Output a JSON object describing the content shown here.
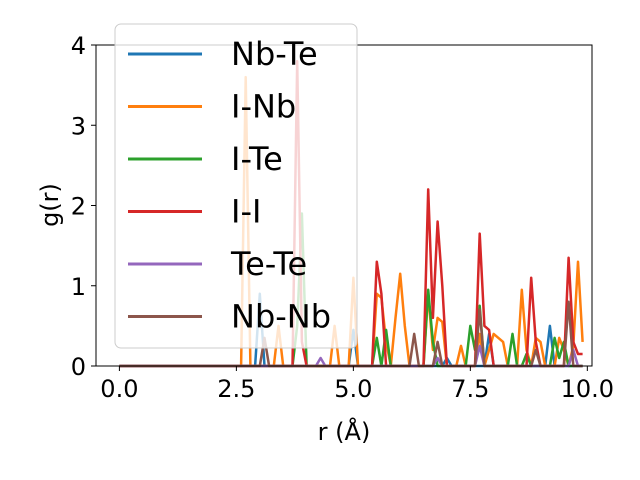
{
  "chart_data": {
    "type": "line",
    "xlabel": "r (Å)",
    "ylabel": "g(r)",
    "xlim": [
      -0.5,
      10.1
    ],
    "ylim": [
      0,
      4
    ],
    "xticks": [
      "0.0",
      "2.5",
      "5.0",
      "7.5",
      "10.0"
    ],
    "xtick_values": [
      0,
      2.5,
      5.0,
      7.5,
      10.0
    ],
    "yticks": [
      "0",
      "1",
      "2",
      "3",
      "4"
    ],
    "ytick_values": [
      0,
      1,
      2,
      3,
      4
    ],
    "grid": false,
    "legend_position": "upper-left",
    "legend_alpha": 0.8,
    "series": [
      {
        "name": "Nb-Te",
        "color": "#1f77b4",
        "points": [
          [
            0,
            0
          ],
          [
            2.9,
            0
          ],
          [
            3.0,
            0.9
          ],
          [
            3.1,
            0
          ],
          [
            4.9,
            0
          ],
          [
            5.0,
            0.45
          ],
          [
            5.1,
            0
          ],
          [
            6.9,
            0
          ],
          [
            7.0,
            0.1
          ],
          [
            7.1,
            0
          ],
          [
            7.8,
            0
          ],
          [
            7.9,
            0.4
          ],
          [
            8.0,
            0
          ],
          [
            9.1,
            0
          ],
          [
            9.2,
            0.5
          ],
          [
            9.3,
            0
          ],
          [
            9.9,
            0
          ]
        ]
      },
      {
        "name": "I-Nb",
        "color": "#ff7f0e",
        "points": [
          [
            0,
            0
          ],
          [
            2.6,
            0
          ],
          [
            2.7,
            3.6
          ],
          [
            2.8,
            0
          ],
          [
            3.3,
            0
          ],
          [
            3.4,
            0.5
          ],
          [
            3.5,
            0
          ],
          [
            4.5,
            0
          ],
          [
            4.6,
            0.5
          ],
          [
            4.7,
            0
          ],
          [
            4.9,
            0
          ],
          [
            5.0,
            1.1
          ],
          [
            5.1,
            0
          ],
          [
            5.4,
            0
          ],
          [
            5.5,
            0.9
          ],
          [
            5.6,
            0.85
          ],
          [
            5.7,
            0.3
          ],
          [
            5.8,
            0
          ],
          [
            5.9,
            0.6
          ],
          [
            6.0,
            1.15
          ],
          [
            6.1,
            0.5
          ],
          [
            6.2,
            0
          ],
          [
            6.5,
            0
          ],
          [
            6.6,
            0.9
          ],
          [
            6.7,
            0.2
          ],
          [
            6.8,
            0.6
          ],
          [
            6.9,
            0.55
          ],
          [
            7.0,
            0
          ],
          [
            7.2,
            0
          ],
          [
            7.3,
            0.25
          ],
          [
            7.4,
            0
          ],
          [
            7.6,
            0
          ],
          [
            7.7,
            0.4
          ],
          [
            7.8,
            0
          ],
          [
            8.0,
            0.4
          ],
          [
            8.1,
            0.35
          ],
          [
            8.2,
            0.3
          ],
          [
            8.3,
            0
          ],
          [
            8.5,
            0
          ],
          [
            8.6,
            0.95
          ],
          [
            8.7,
            0.2
          ],
          [
            8.8,
            0
          ],
          [
            8.9,
            0.35
          ],
          [
            9.0,
            0.3
          ],
          [
            9.1,
            0
          ],
          [
            9.3,
            0
          ],
          [
            9.4,
            0.35
          ],
          [
            9.5,
            0.2
          ],
          [
            9.6,
            0
          ],
          [
            9.7,
            0.25
          ],
          [
            9.8,
            1.3
          ],
          [
            9.9,
            0.3
          ]
        ]
      },
      {
        "name": "I-Te",
        "color": "#2ca02c",
        "points": [
          [
            0,
            0
          ],
          [
            3.7,
            0
          ],
          [
            3.8,
            0.5
          ],
          [
            3.9,
            1.9
          ],
          [
            4.0,
            0
          ],
          [
            5.4,
            0
          ],
          [
            5.5,
            0.35
          ],
          [
            5.6,
            0
          ],
          [
            5.7,
            0.45
          ],
          [
            5.8,
            0
          ],
          [
            6.5,
            0
          ],
          [
            6.6,
            0.95
          ],
          [
            6.7,
            0.3
          ],
          [
            6.8,
            0
          ],
          [
            7.4,
            0
          ],
          [
            7.5,
            0.5
          ],
          [
            7.6,
            0.2
          ],
          [
            7.7,
            0.75
          ],
          [
            7.8,
            0
          ],
          [
            8.3,
            0
          ],
          [
            8.4,
            0.4
          ],
          [
            8.5,
            0
          ],
          [
            8.6,
            0
          ],
          [
            8.7,
            0.15
          ],
          [
            8.8,
            0
          ],
          [
            9.2,
            0
          ],
          [
            9.3,
            0.35
          ],
          [
            9.4,
            0.1
          ],
          [
            9.5,
            0.3
          ],
          [
            9.6,
            0
          ],
          [
            9.9,
            0
          ]
        ]
      },
      {
        "name": "I-I",
        "color": "#d62728",
        "points": [
          [
            0,
            0
          ],
          [
            3.7,
            0
          ],
          [
            3.8,
            3.8
          ],
          [
            3.9,
            0.3
          ],
          [
            4.0,
            0
          ],
          [
            5.4,
            0
          ],
          [
            5.5,
            1.3
          ],
          [
            5.6,
            0.9
          ],
          [
            5.7,
            0
          ],
          [
            6.5,
            0
          ],
          [
            6.6,
            2.2
          ],
          [
            6.7,
            0.6
          ],
          [
            6.8,
            1.8
          ],
          [
            6.9,
            1.0
          ],
          [
            7.0,
            0
          ],
          [
            7.6,
            0
          ],
          [
            7.7,
            1.65
          ],
          [
            7.8,
            0.5
          ],
          [
            7.9,
            0.45
          ],
          [
            8.0,
            0
          ],
          [
            8.7,
            0
          ],
          [
            8.8,
            1.1
          ],
          [
            8.9,
            0.3
          ],
          [
            9.0,
            0
          ],
          [
            9.5,
            0
          ],
          [
            9.6,
            1.35
          ],
          [
            9.7,
            0.3
          ],
          [
            9.8,
            0.15
          ],
          [
            9.9,
            0.15
          ]
        ]
      },
      {
        "name": "Te-Te",
        "color": "#9467bd",
        "points": [
          [
            0,
            0
          ],
          [
            4.2,
            0
          ],
          [
            4.3,
            0.1
          ],
          [
            4.4,
            0
          ],
          [
            6.7,
            0
          ],
          [
            6.8,
            0.1
          ],
          [
            6.9,
            0
          ],
          [
            7.6,
            0
          ],
          [
            7.7,
            0.25
          ],
          [
            7.8,
            0
          ],
          [
            9.6,
            0
          ],
          [
            9.7,
            0.2
          ],
          [
            9.8,
            0
          ],
          [
            9.9,
            0
          ]
        ]
      },
      {
        "name": "Nb-Nb",
        "color": "#8c564b",
        "points": [
          [
            0,
            0
          ],
          [
            3.0,
            0
          ],
          [
            3.1,
            0.35
          ],
          [
            3.2,
            0
          ],
          [
            6.2,
            0
          ],
          [
            6.3,
            0.4
          ],
          [
            6.4,
            0
          ],
          [
            6.7,
            0
          ],
          [
            6.8,
            0.3
          ],
          [
            6.9,
            0
          ],
          [
            7.6,
            0
          ],
          [
            7.7,
            0.7
          ],
          [
            7.8,
            0
          ],
          [
            8.8,
            0
          ],
          [
            8.9,
            0.2
          ],
          [
            9.0,
            0
          ],
          [
            9.5,
            0
          ],
          [
            9.6,
            0.8
          ],
          [
            9.7,
            0
          ],
          [
            9.9,
            0
          ]
        ]
      }
    ]
  }
}
